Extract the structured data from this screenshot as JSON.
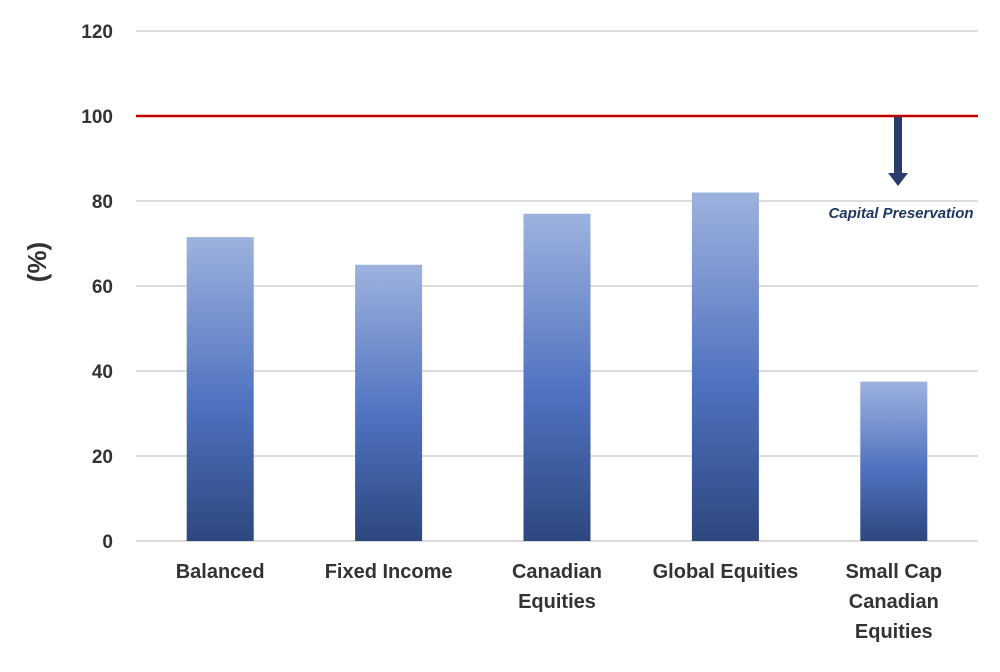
{
  "chart_data": {
    "type": "bar",
    "ylabel": "(%)",
    "xlabel": "",
    "ylim": [
      0,
      120
    ],
    "yticks": [
      0,
      20,
      40,
      60,
      80,
      100,
      120
    ],
    "grid": true,
    "categories": [
      [
        "Balanced"
      ],
      [
        "Fixed Income"
      ],
      [
        "Canadian",
        "Equities"
      ],
      [
        "Global Equities"
      ],
      [
        "Small Cap",
        "Canadian",
        "Equities"
      ]
    ],
    "values": [
      71.5,
      65,
      77,
      82,
      37.5
    ],
    "reference_line": {
      "value": 100,
      "color": "#c00000"
    },
    "annotation": {
      "text": "Capital Preservation",
      "color": "#1f3864",
      "arrow": "down"
    },
    "colors": {
      "bar_top": "#9db2de",
      "bar_mid": "#4f72c0",
      "bar_bottom": "#2d477f",
      "grid": "#c8c8c8",
      "arrow": "#2a3d6a"
    }
  }
}
